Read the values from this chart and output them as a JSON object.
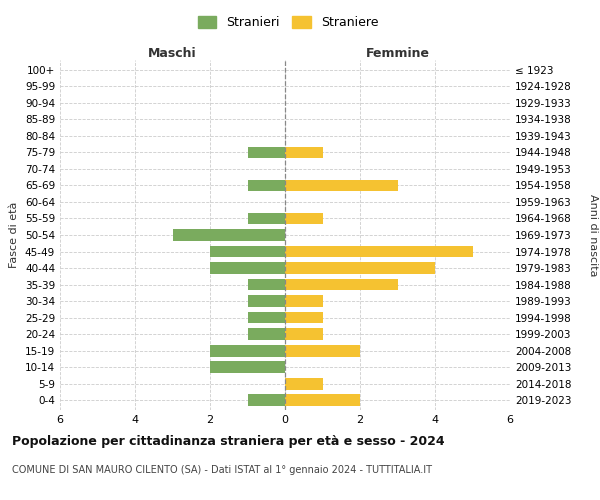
{
  "age_groups": [
    "0-4",
    "5-9",
    "10-14",
    "15-19",
    "20-24",
    "25-29",
    "30-34",
    "35-39",
    "40-44",
    "45-49",
    "50-54",
    "55-59",
    "60-64",
    "65-69",
    "70-74",
    "75-79",
    "80-84",
    "85-89",
    "90-94",
    "95-99",
    "100+"
  ],
  "birth_years": [
    "2019-2023",
    "2014-2018",
    "2009-2013",
    "2004-2008",
    "1999-2003",
    "1994-1998",
    "1989-1993",
    "1984-1988",
    "1979-1983",
    "1974-1978",
    "1969-1973",
    "1964-1968",
    "1959-1963",
    "1954-1958",
    "1949-1953",
    "1944-1948",
    "1939-1943",
    "1934-1938",
    "1929-1933",
    "1924-1928",
    "≤ 1923"
  ],
  "maschi": [
    1,
    0,
    2,
    2,
    1,
    1,
    1,
    1,
    2,
    2,
    3,
    1,
    0,
    1,
    0,
    1,
    0,
    0,
    0,
    0,
    0
  ],
  "femmine": [
    2,
    1,
    0,
    2,
    1,
    1,
    1,
    3,
    4,
    5,
    0,
    1,
    0,
    3,
    0,
    1,
    0,
    0,
    0,
    0,
    0
  ],
  "color_maschi": "#7aab5e",
  "color_femmine": "#f5c231",
  "title": "Popolazione per cittadinanza straniera per età e sesso - 2024",
  "subtitle": "COMUNE DI SAN MAURO CILENTO (SA) - Dati ISTAT al 1° gennaio 2024 - TUTTITALIA.IT",
  "label_maschi": "Maschi",
  "label_femmine": "Femmine",
  "ylabel_left": "Fasce di età",
  "ylabel_right": "Anni di nascita",
  "legend_maschi": "Stranieri",
  "legend_femmine": "Straniere",
  "xlim": 6,
  "bar_height": 0.72,
  "background_color": "#ffffff",
  "grid_color": "#cccccc"
}
